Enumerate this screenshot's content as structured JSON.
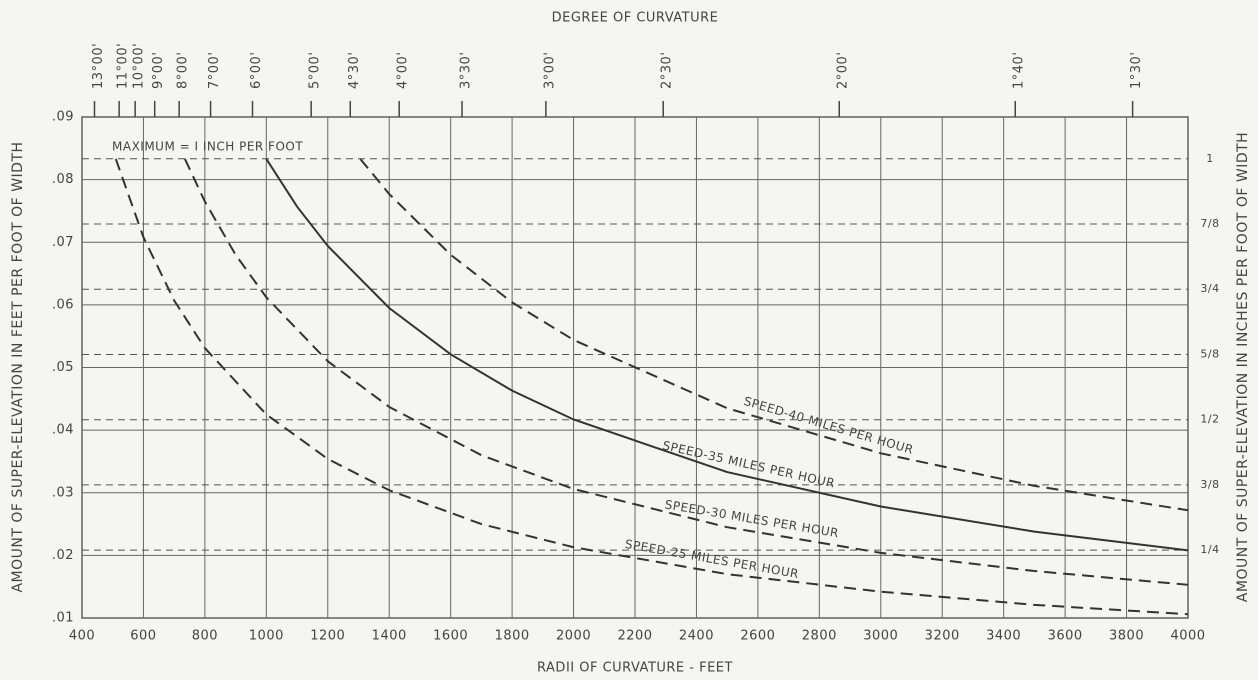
{
  "chart_data": {
    "type": "line",
    "title": "DEGREE OF CURVATURE",
    "x_label": "RADII OF CURVATURE - FEET",
    "y_label": "AMOUNT OF SUPER-ELEVATION IN FEET PER FOOT OF WIDTH",
    "y2_label": "AMOUNT OF SUPER-ELEVATION IN INCHES PER FOOT OF WIDTH",
    "annotation": "MAXIMUM = I INCH PER FOOT",
    "grid": true,
    "xlim": [
      400,
      4000
    ],
    "xticks": [
      400,
      600,
      800,
      1000,
      1200,
      1400,
      1600,
      1800,
      2000,
      2200,
      2400,
      2600,
      2800,
      3000,
      3200,
      3400,
      3600,
      3800,
      4000
    ],
    "ylim": [
      0.01,
      0.09
    ],
    "yticks": [
      {
        "value": 0.01,
        "label": ".01"
      },
      {
        "value": 0.02,
        "label": ".02"
      },
      {
        "value": 0.03,
        "label": ".03"
      },
      {
        "value": 0.04,
        "label": ".04"
      },
      {
        "value": 0.05,
        "label": ".05"
      },
      {
        "value": 0.06,
        "label": ".06"
      },
      {
        "value": 0.07,
        "label": ".07"
      },
      {
        "value": 0.08,
        "label": ".08"
      },
      {
        "value": 0.09,
        "label": ".09"
      }
    ],
    "y2lim": [
      0.12,
      1.08
    ],
    "y2ticks": [
      1,
      {
        "value": 0.875,
        "label": "7/8"
      },
      {
        "value": 0.75,
        "label": "3/4"
      },
      {
        "value": 0.625,
        "label": "5/8"
      },
      {
        "value": 0.5,
        "label": "1/2"
      },
      {
        "value": 0.375,
        "label": "3/8"
      },
      {
        "value": 0.25,
        "label": "1/4"
      }
    ],
    "x2ticks": [
      {
        "value": 440.7,
        "label": "13°00'"
      },
      {
        "value": 520.9,
        "label": "11°00'"
      },
      {
        "value": 573,
        "label": "10°00'"
      },
      {
        "value": 636.6,
        "label": "9°00'"
      },
      {
        "value": 716.2,
        "label": "8°00'"
      },
      {
        "value": 818.5,
        "label": "7°00'"
      },
      {
        "value": 955,
        "label": "6°00'"
      },
      {
        "value": 1145.9,
        "label": "5°00'"
      },
      {
        "value": 1273.2,
        "label": "4°30'"
      },
      {
        "value": 1432.4,
        "label": "4°00'"
      },
      {
        "value": 1637,
        "label": "3°30'"
      },
      {
        "value": 1909.9,
        "label": "3°00'"
      },
      {
        "value": 2291.8,
        "label": "2°30'"
      },
      {
        "value": 2864.8,
        "label": "2°00'"
      },
      {
        "value": 3437.7,
        "label": "1°40'"
      },
      {
        "value": 3819.7,
        "label": "1°30'"
      }
    ],
    "series": [
      {
        "name": "SPEED-25 MILES PER HOUR",
        "color": "#333333",
        "dashed": true,
        "x": [
          510,
          600,
          700,
          800,
          1000,
          1200,
          1400,
          1700,
          2000,
          2500,
          3000,
          3500,
          4000
        ],
        "values": [
          0.0833,
          0.0708,
          0.0607,
          0.0531,
          0.0425,
          0.0354,
          0.0304,
          0.025,
          0.0213,
          0.017,
          0.0142,
          0.0121,
          0.0106
        ]
      },
      {
        "name": "SPEED-30 MILES PER HOUR",
        "color": "#333333",
        "dashed": true,
        "x": [
          735,
          800,
          900,
          1000,
          1200,
          1400,
          1700,
          2000,
          2500,
          3000,
          3500,
          4000
        ],
        "values": [
          0.0833,
          0.0765,
          0.068,
          0.0612,
          0.051,
          0.0437,
          0.036,
          0.0306,
          0.0245,
          0.0204,
          0.0175,
          0.0153
        ]
      },
      {
        "name": "SPEED-35 MILES PER HOUR",
        "color": "#333333",
        "dashed": false,
        "x": [
          1000,
          1100,
          1200,
          1400,
          1600,
          1800,
          2000,
          2500,
          3000,
          3500,
          4000
        ],
        "values": [
          0.0833,
          0.0757,
          0.0694,
          0.0595,
          0.0521,
          0.0463,
          0.0417,
          0.0333,
          0.0278,
          0.0238,
          0.0208
        ]
      },
      {
        "name": "SPEED-40 MILES PER HOUR",
        "color": "#333333",
        "dashed": true,
        "x": [
          1306,
          1400,
          1600,
          1800,
          2000,
          2500,
          3000,
          3500,
          4000
        ],
        "values": [
          0.0833,
          0.0777,
          0.068,
          0.0604,
          0.0544,
          0.0435,
          0.0363,
          0.0311,
          0.0272
        ]
      }
    ]
  }
}
